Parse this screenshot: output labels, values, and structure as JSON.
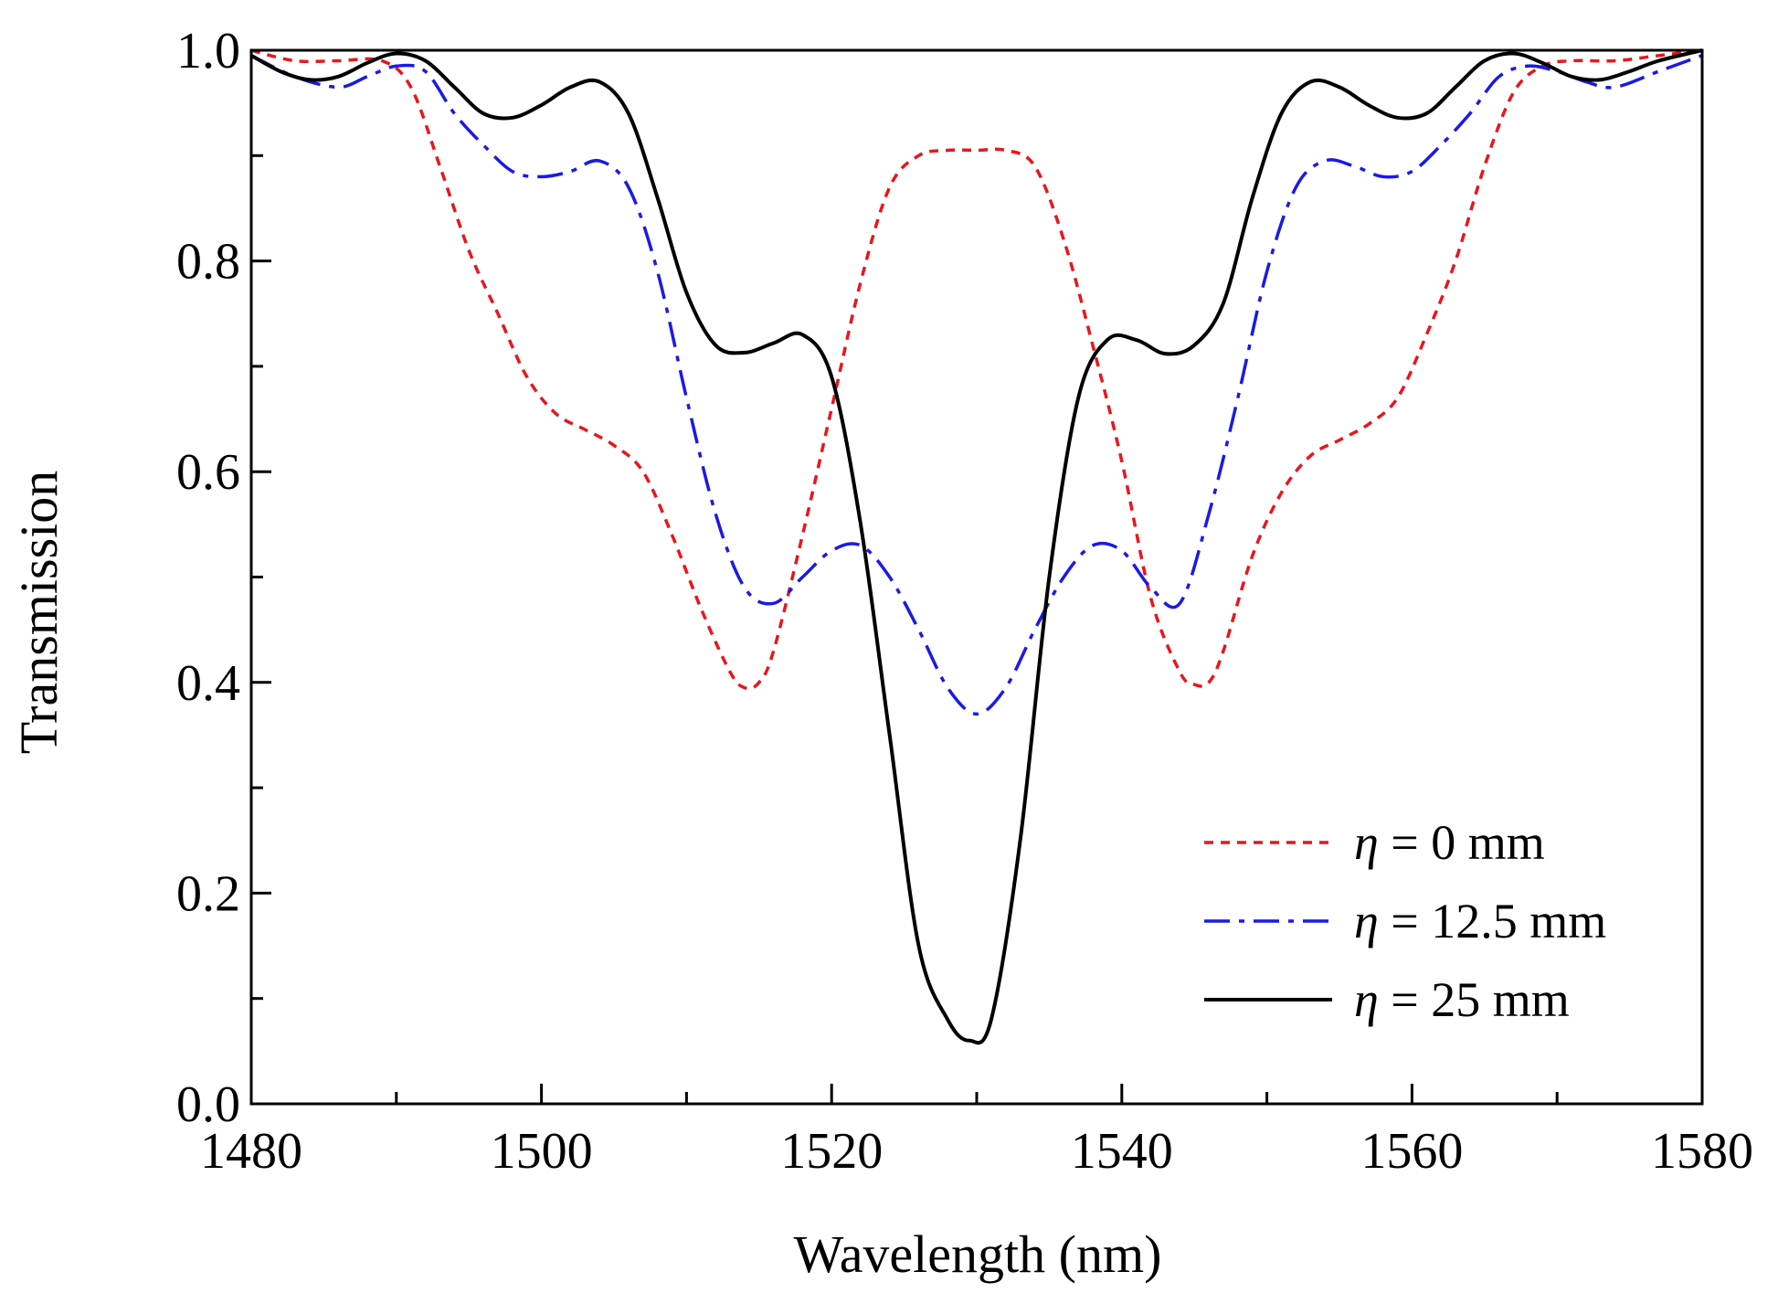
{
  "chart_data": {
    "type": "line",
    "xlabel": "Wavelength (nm)",
    "ylabel": "Transmission",
    "xlim": [
      1480,
      1580
    ],
    "ylim": [
      0.0,
      1.0
    ],
    "x_major_ticks": [
      1480,
      1500,
      1520,
      1540,
      1560,
      1580
    ],
    "x_tick_labels": [
      "1480",
      "1500",
      "1520",
      "1540",
      "1560",
      "1580"
    ],
    "y_major_ticks": [
      0.0,
      0.2,
      0.4,
      0.6,
      0.8,
      1.0
    ],
    "y_tick_labels": [
      "0.0",
      "0.2",
      "0.4",
      "0.6",
      "0.8",
      "1.0"
    ],
    "grid": false,
    "legend_position": "bottom-right",
    "series": [
      {
        "name": "η = 0 mm",
        "eta_symbol": "η",
        "label_rest": " = 0 mm",
        "color": "#e8161b",
        "style": "dashed",
        "x": [
          1480,
          1483,
          1486,
          1489,
          1491,
          1493,
          1495,
          1497,
          1499,
          1501,
          1503,
          1505,
          1507,
          1509,
          1511,
          1513,
          1514,
          1515,
          1516,
          1518,
          1520,
          1522,
          1524,
          1526,
          1528,
          1530,
          1532,
          1534,
          1536,
          1538,
          1540,
          1542,
          1544,
          1545,
          1546,
          1547,
          1549,
          1551,
          1553,
          1555,
          1557,
          1559,
          1561,
          1563,
          1565,
          1567,
          1569,
          1571,
          1574,
          1577,
          1580
        ],
        "y": [
          1.0,
          0.99,
          0.99,
          0.99,
          0.965,
          0.89,
          0.81,
          0.75,
          0.69,
          0.655,
          0.64,
          0.625,
          0.6,
          0.54,
          0.47,
          0.41,
          0.395,
          0.4,
          0.43,
          0.54,
          0.66,
          0.78,
          0.87,
          0.9,
          0.905,
          0.905,
          0.905,
          0.89,
          0.82,
          0.72,
          0.61,
          0.48,
          0.41,
          0.398,
          0.4,
          0.43,
          0.52,
          0.58,
          0.615,
          0.63,
          0.645,
          0.67,
          0.73,
          0.8,
          0.89,
          0.96,
          0.985,
          0.99,
          0.99,
          0.995,
          1.0
        ]
      },
      {
        "name": "η = 12.5 mm",
        "eta_symbol": "η",
        "label_rest": " = 12.5 mm",
        "color": "#1a1ae6",
        "style": "dashdot",
        "x": [
          1480,
          1483,
          1486,
          1488,
          1490,
          1492,
          1494,
          1496,
          1498,
          1500,
          1502,
          1504,
          1506,
          1508,
          1510,
          1512,
          1514,
          1516,
          1518,
          1520,
          1522,
          1524,
          1526,
          1528,
          1530,
          1532,
          1534,
          1536,
          1538,
          1540,
          1542,
          1544,
          1546,
          1548,
          1550,
          1552,
          1554,
          1556,
          1558,
          1560,
          1562,
          1564,
          1566,
          1568,
          1570,
          1572,
          1574,
          1577,
          1580
        ],
        "y": [
          0.995,
          0.975,
          0.965,
          0.975,
          0.985,
          0.98,
          0.94,
          0.91,
          0.885,
          0.88,
          0.885,
          0.895,
          0.87,
          0.79,
          0.67,
          0.56,
          0.49,
          0.475,
          0.5,
          0.525,
          0.53,
          0.5,
          0.45,
          0.395,
          0.37,
          0.395,
          0.45,
          0.5,
          0.53,
          0.525,
          0.49,
          0.475,
          0.56,
          0.67,
          0.79,
          0.87,
          0.895,
          0.89,
          0.88,
          0.885,
          0.91,
          0.94,
          0.975,
          0.985,
          0.98,
          0.97,
          0.965,
          0.98,
          0.995
        ]
      },
      {
        "name": "η = 25 mm",
        "eta_symbol": "η",
        "label_rest": " = 25 mm",
        "color": "#000000",
        "style": "solid",
        "x": [
          1480,
          1482,
          1484,
          1486,
          1488,
          1490,
          1492,
          1494,
          1496,
          1498,
          1500,
          1502,
          1504,
          1506,
          1508,
          1510,
          1512,
          1514,
          1516,
          1518,
          1520,
          1522,
          1524,
          1526,
          1528,
          1529.5,
          1531,
          1533,
          1535,
          1537,
          1539,
          1541,
          1543,
          1545,
          1547,
          1549,
          1551,
          1553,
          1555,
          1557,
          1559,
          1561,
          1563,
          1565,
          1567,
          1569,
          1571,
          1573,
          1575,
          1577,
          1580
        ],
        "y": [
          0.995,
          0.98,
          0.972,
          0.975,
          0.988,
          0.997,
          0.99,
          0.965,
          0.94,
          0.936,
          0.948,
          0.965,
          0.97,
          0.94,
          0.86,
          0.77,
          0.72,
          0.713,
          0.722,
          0.73,
          0.69,
          0.55,
          0.35,
          0.15,
          0.08,
          0.06,
          0.08,
          0.25,
          0.5,
          0.67,
          0.725,
          0.725,
          0.712,
          0.72,
          0.76,
          0.86,
          0.94,
          0.97,
          0.965,
          0.948,
          0.936,
          0.94,
          0.965,
          0.99,
          0.997,
          0.988,
          0.975,
          0.972,
          0.98,
          0.99,
          1.0
        ]
      }
    ]
  }
}
